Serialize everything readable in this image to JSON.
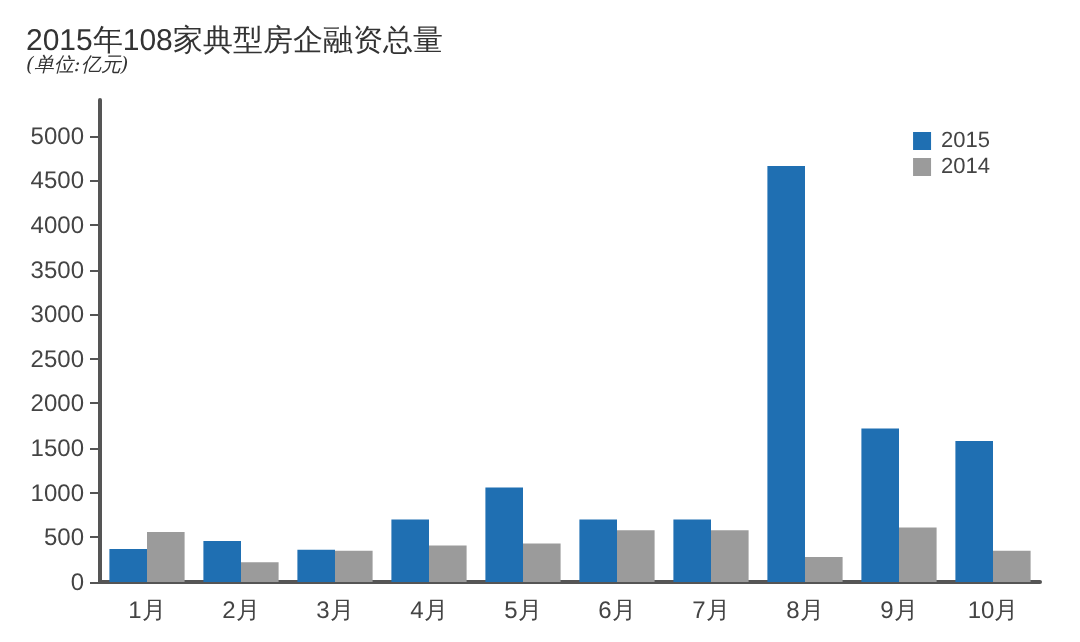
{
  "chart_data": {
    "type": "bar",
    "title": "2015年108家典型房企融资总量",
    "subtitle": "(单位:亿元)",
    "categories": [
      "1月",
      "2月",
      "3月",
      "4月",
      "5月",
      "6月",
      "7月",
      "8月",
      "9月",
      "10月"
    ],
    "series": [
      {
        "name": "2015",
        "color": "#1f6fb2",
        "values": [
          370,
          460,
          360,
          700,
          1060,
          700,
          700,
          4660,
          1720,
          1580
        ]
      },
      {
        "name": "2014",
        "color": "#9b9b9b",
        "values": [
          560,
          220,
          350,
          410,
          430,
          580,
          580,
          280,
          610,
          350
        ]
      }
    ],
    "ylim": [
      0,
      5400
    ],
    "yticks": [
      0,
      500,
      1000,
      1500,
      2000,
      2500,
      3000,
      3500,
      4000,
      4500,
      5000
    ],
    "grid": false,
    "legend": "top right"
  }
}
